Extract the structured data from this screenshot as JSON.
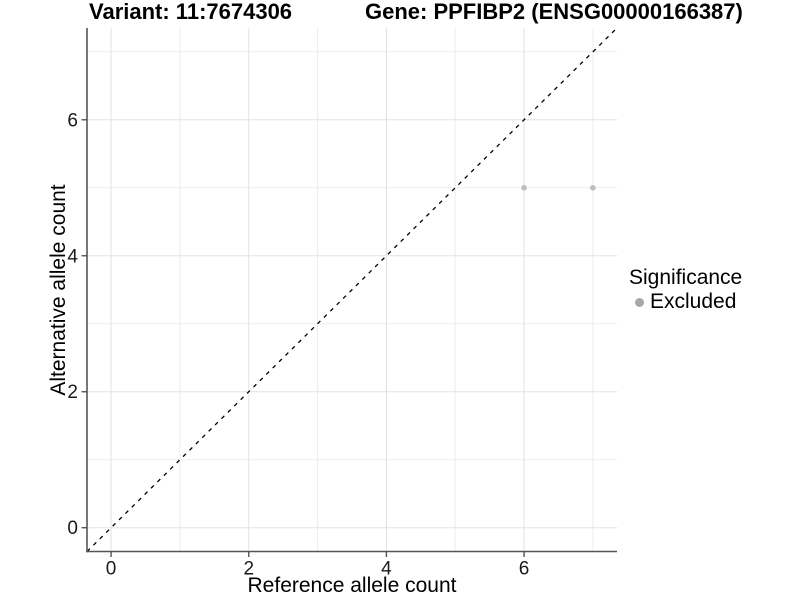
{
  "title": {
    "left": "Variant: 11:7674306",
    "right": "Gene: PPFIBP2 (ENSG00000166387)"
  },
  "legend": {
    "title": "Significance",
    "items": [
      {
        "label": "Excluded",
        "color": "#a8a8a8"
      }
    ]
  },
  "chart_data": {
    "type": "scatter",
    "title": "Variant: 11:7674306   Gene: PPFIBP2 (ENSG00000166387)",
    "xlabel": "Reference allele count",
    "ylabel": "Alternative allele count",
    "xlim": [
      -0.35,
      7.35
    ],
    "ylim": [
      -0.35,
      7.35
    ],
    "x_major_ticks": [
      0,
      2,
      4,
      6
    ],
    "y_major_ticks": [
      0,
      2,
      4,
      6
    ],
    "x_minor_gridlines": [
      1,
      3,
      5,
      7
    ],
    "y_minor_gridlines": [
      1,
      3,
      5,
      7
    ],
    "grid": "major+minor",
    "legend_position": "right",
    "series": [
      {
        "name": "Excluded",
        "color": "#bdbdbd",
        "points": [
          {
            "x": 6,
            "y": 5
          },
          {
            "x": 7,
            "y": 5
          }
        ]
      }
    ],
    "reference_line": {
      "type": "identity y=x",
      "linetype": "dashed",
      "color": "#000000",
      "from": [
        -0.35,
        -0.35
      ],
      "to": [
        7.35,
        7.35
      ]
    }
  },
  "colors": {
    "background": "#ffffff",
    "grid_major": "#e2e2e2",
    "grid_minor": "#ededed",
    "axis_line": "#555555",
    "tick_text": "#1a1a1a",
    "point": "#bdbdbd",
    "legend_dot": "#a8a8a8",
    "dashed_line": "#000000"
  }
}
